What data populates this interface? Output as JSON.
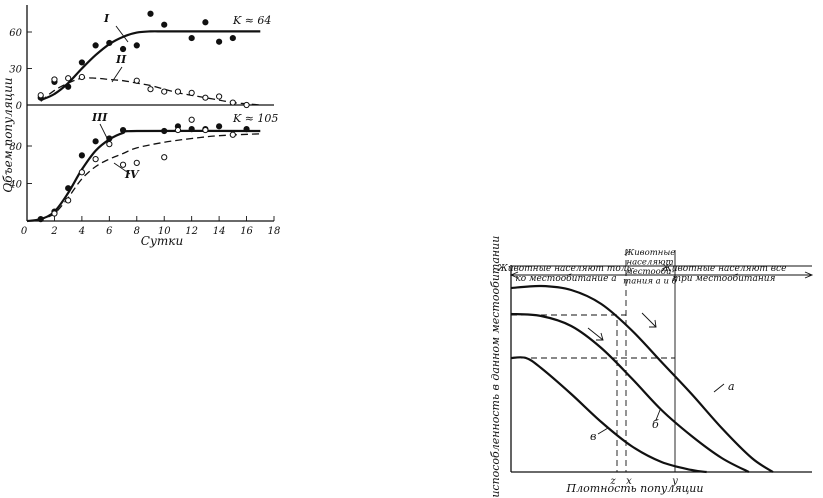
{
  "chart_data": [
    {
      "type": "scatter",
      "ylabel": "Объем популяции",
      "xlabel": "Сутки",
      "x_ticks": [
        0,
        2,
        4,
        6,
        8,
        10,
        12,
        14,
        16,
        18
      ],
      "xlim": [
        0,
        18
      ],
      "panels": [
        {
          "y_ticks": [
            0,
            30,
            60
          ],
          "ylim": [
            -1,
            76
          ],
          "annotation": "K ≈ 64",
          "series": [
            {
              "name": "I",
              "style": "solid",
              "curve": [
                [
                  1,
                  4
                ],
                [
                  2,
                  9
                ],
                [
                  3,
                  18
                ],
                [
                  4,
                  30
                ],
                [
                  5,
                  41
                ],
                [
                  6,
                  50
                ],
                [
                  7,
                  56
                ],
                [
                  8,
                  59.5
                ],
                [
                  9,
                  60.5
                ],
                [
                  10,
                  60.5
                ],
                [
                  12,
                  60.5
                ],
                [
                  14,
                  60.5
                ],
                [
                  17,
                  60.5
                ]
              ],
              "points": [
                [
                  1,
                  6
                ],
                [
                  2,
                  19
                ],
                [
                  3,
                  15
                ],
                [
                  4,
                  35
                ],
                [
                  5,
                  49
                ],
                [
                  6,
                  51
                ],
                [
                  7,
                  46
                ],
                [
                  8,
                  49
                ],
                [
                  9,
                  75
                ],
                [
                  10,
                  66
                ],
                [
                  12,
                  55
                ],
                [
                  13,
                  68
                ],
                [
                  14,
                  52
                ],
                [
                  15,
                  55
                ]
              ],
              "marker": "filled"
            },
            {
              "name": "II",
              "style": "dashed",
              "curve": [
                [
                  1,
                  3
                ],
                [
                  2,
                  12
                ],
                [
                  3,
                  18
                ],
                [
                  4,
                  22
                ],
                [
                  5,
                  22
                ],
                [
                  6,
                  21
                ],
                [
                  7,
                  20
                ],
                [
                  8,
                  18
                ],
                [
                  9,
                  16
                ],
                [
                  10,
                  13
                ],
                [
                  11,
                  10
                ],
                [
                  12,
                  8
                ],
                [
                  13,
                  6
                ],
                [
                  14,
                  4
                ],
                [
                  15,
                  2
                ],
                [
                  16,
                  1
                ],
                [
                  17,
                  0
                ]
              ],
              "points": [
                [
                  1,
                  8
                ],
                [
                  2,
                  21
                ],
                [
                  3,
                  22
                ],
                [
                  4,
                  23
                ],
                [
                  8,
                  20
                ],
                [
                  9,
                  13
                ],
                [
                  10,
                  11
                ],
                [
                  11,
                  11
                ],
                [
                  12,
                  10
                ],
                [
                  13,
                  6
                ],
                [
                  14,
                  7
                ],
                [
                  15,
                  2
                ],
                [
                  16,
                  0
                ]
              ],
              "marker": "open"
            }
          ]
        },
        {
          "y_ticks": [
            40,
            80
          ],
          "ylim": [
            0,
            110
          ],
          "annotation": "K ≈ 105",
          "series": [
            {
              "name": "III",
              "style": "solid",
              "curve": [
                [
                  0,
                  0
                ],
                [
                  1,
                  2
                ],
                [
                  2,
                  10
                ],
                [
                  3,
                  30
                ],
                [
                  4,
                  55
                ],
                [
                  5,
                  75
                ],
                [
                  6,
                  87
                ],
                [
                  7,
                  94
                ],
                [
                  8,
                  96
                ],
                [
                  17,
                  96
                ]
              ],
              "points": [
                [
                  1,
                  2
                ],
                [
                  2,
                  10
                ],
                [
                  3,
                  35
                ],
                [
                  4,
                  70
                ],
                [
                  5,
                  85
                ],
                [
                  6,
                  88
                ],
                [
                  7,
                  97
                ],
                [
                  10,
                  96
                ],
                [
                  11,
                  101
                ],
                [
                  12,
                  98
                ],
                [
                  13,
                  98
                ],
                [
                  14,
                  101
                ],
                [
                  16,
                  98
                ]
              ],
              "marker": "filled"
            },
            {
              "name": "IV",
              "style": "dashed",
              "curve": [
                [
                  0,
                  0
                ],
                [
                  1,
                  2
                ],
                [
                  2,
                  8
                ],
                [
                  3,
                  25
                ],
                [
                  4,
                  45
                ],
                [
                  5,
                  58
                ],
                [
                  6,
                  66
                ],
                [
                  7,
                  72
                ],
                [
                  8,
                  78
                ],
                [
                  10,
                  84
                ],
                [
                  12,
                  88
                ],
                [
                  14,
                  91
                ],
                [
                  17,
                  93
                ]
              ],
              "points": [
                [
                  2,
                  8
                ],
                [
                  3,
                  22
                ],
                [
                  4,
                  52
                ],
                [
                  5,
                  66
                ],
                [
                  6,
                  82
                ],
                [
                  7,
                  60
                ],
                [
                  8,
                  62
                ],
                [
                  10,
                  68
                ],
                [
                  11,
                  97
                ],
                [
                  12,
                  108
                ],
                [
                  13,
                  97
                ],
                [
                  15,
                  92
                ]
              ],
              "marker": "open"
            }
          ]
        }
      ]
    },
    {
      "type": "line",
      "ylabel": "Приспособленность в данном местообитании",
      "xlabel": "Плотность популяции",
      "zones": [
        "Животные населяют толь-\nко местообитание а",
        "Животные\nнаселяют\nместооби-\nтания а и б",
        "Животные населяют все\nтри местообитания"
      ],
      "x_marks": [
        "z",
        "x",
        "y"
      ],
      "series": [
        {
          "name": "а",
          "curve": [
            [
              0,
              0.92
            ],
            [
              0.1,
              0.93
            ],
            [
              0.2,
              0.91
            ],
            [
              0.3,
              0.84
            ],
            [
              0.4,
              0.71
            ],
            [
              0.5,
              0.55
            ],
            [
              0.6,
              0.39
            ],
            [
              0.7,
              0.22
            ],
            [
              0.8,
              0.07
            ],
            [
              0.87,
              0.0
            ]
          ]
        },
        {
          "name": "б",
          "curve": [
            [
              0,
              0.79
            ],
            [
              0.1,
              0.78
            ],
            [
              0.2,
              0.73
            ],
            [
              0.3,
              0.62
            ],
            [
              0.4,
              0.47
            ],
            [
              0.5,
              0.31
            ],
            [
              0.6,
              0.18
            ],
            [
              0.7,
              0.07
            ],
            [
              0.79,
              0.0
            ]
          ]
        },
        {
          "name": "в",
          "curve": [
            [
              0,
              0.57
            ],
            [
              0.05,
              0.57
            ],
            [
              0.1,
              0.52
            ],
            [
              0.2,
              0.39
            ],
            [
              0.3,
              0.25
            ],
            [
              0.4,
              0.13
            ],
            [
              0.5,
              0.05
            ],
            [
              0.6,
              0.01
            ],
            [
              0.65,
              0.0
            ]
          ]
        }
      ]
    }
  ]
}
